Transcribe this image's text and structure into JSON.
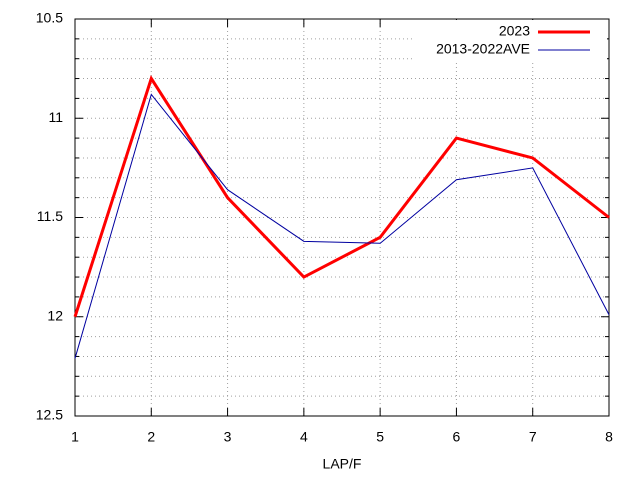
{
  "chart_data": {
    "type": "line",
    "x_label": "LAP/F",
    "x": [
      1,
      2,
      3,
      4,
      5,
      6,
      7,
      8
    ],
    "series": [
      {
        "name": "2023",
        "color": "#ff0000",
        "width": 3,
        "values": [
          12.0,
          10.8,
          11.4,
          11.8,
          11.6,
          11.1,
          11.2,
          11.5
        ]
      },
      {
        "name": "2013-2022AVE",
        "color": "#0000a0",
        "width": 1,
        "values": [
          12.21,
          10.88,
          11.36,
          11.62,
          11.63,
          11.31,
          11.25,
          11.99
        ]
      }
    ],
    "xlim": [
      1,
      8
    ],
    "xticks": [
      1,
      2,
      3,
      4,
      5,
      6,
      7,
      8
    ],
    "ylim": [
      10.5,
      12.5
    ],
    "yticks": [
      10.5,
      11,
      11.5,
      12,
      12.5
    ],
    "y_minor_ticks": [
      10.6,
      10.7,
      10.8,
      10.9,
      11.1,
      11.2,
      11.3,
      11.4,
      11.6,
      11.7,
      11.8,
      11.9,
      12.1,
      12.2,
      12.3,
      12.4
    ],
    "y_reversed": true,
    "grid": true,
    "legend": "top-right"
  }
}
